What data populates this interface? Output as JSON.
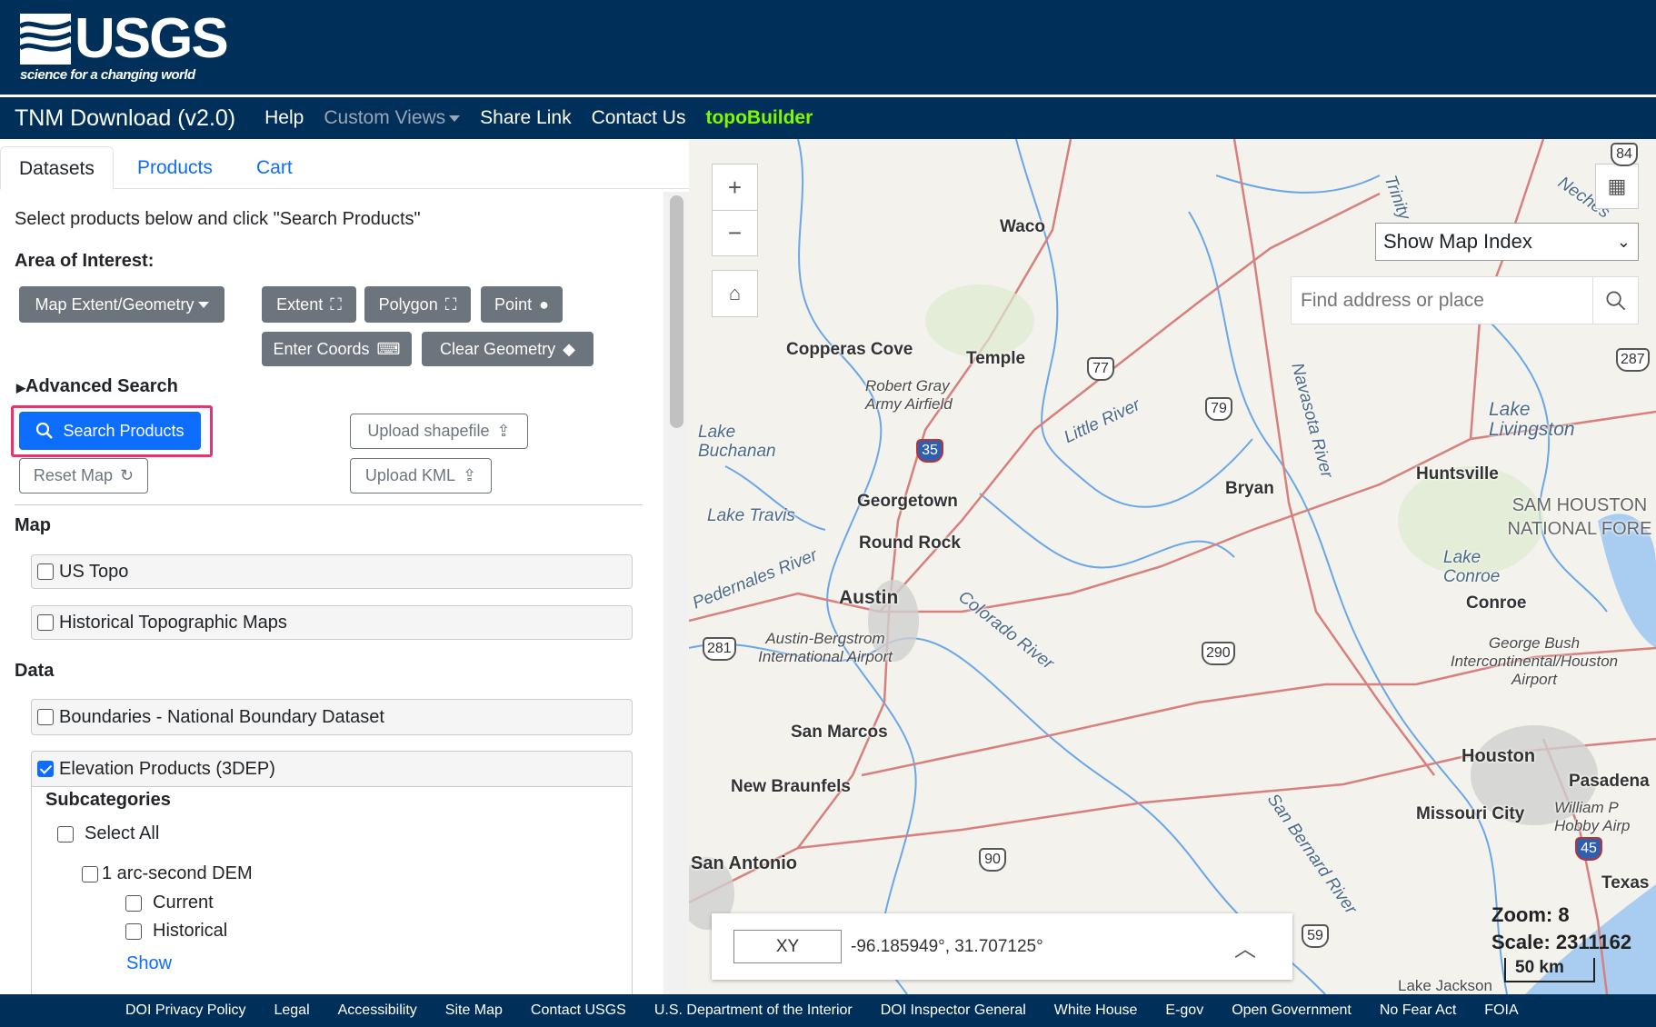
{
  "header": {
    "logo_text": "USGS",
    "logo_tagline": "science for a changing world"
  },
  "nav": {
    "title": "TNM Download (v2.0)",
    "items": [
      "Help",
      "Custom Views",
      "Share Link",
      "Contact Us",
      "topoBuilder"
    ]
  },
  "tabs": [
    "Datasets",
    "Products",
    "Cart"
  ],
  "panel": {
    "instructions": "Select products below and click \"Search Products\"",
    "aoi_heading": "Area of Interest:",
    "aoi_buttons": {
      "map_extent": "Map Extent/Geometry",
      "extent": "Extent",
      "polygon": "Polygon",
      "point": "Point",
      "enter_coords": "Enter Coords",
      "clear_geometry": "Clear Geometry"
    },
    "advanced_search": "Advanced Search",
    "search_products": "Search Products",
    "upload_shapefile": "Upload shapefile",
    "reset_map": "Reset Map",
    "upload_kml": "Upload KML",
    "map_heading": "Map",
    "map_items": [
      {
        "label": "US Topo",
        "checked": false
      },
      {
        "label": "Historical Topographic Maps",
        "checked": false
      }
    ],
    "data_heading": "Data",
    "data_items": [
      {
        "label": "Boundaries - National Boundary Dataset",
        "checked": false
      },
      {
        "label": "Elevation Products (3DEP)",
        "checked": true
      }
    ],
    "subcategories": "Subcategories",
    "select_all": "Select All",
    "dem_1arc": "1 arc-second DEM",
    "current": "Current",
    "historical": "Historical",
    "show": "Show"
  },
  "map": {
    "index_select": "Show Map Index",
    "search_placeholder": "Find address or place",
    "coord_mode": "XY",
    "coords": "-96.185949°, 31.707125°",
    "zoom": "Zoom: 8",
    "scale": "Scale: 2311162",
    "scalebar": "50 km",
    "labels": [
      "Waco",
      "Copperas Cove",
      "Temple",
      "Robert Gray Army Airfield",
      "Lake Buchanan",
      "Little River",
      "Navasota River",
      "Lake Livingston",
      "Huntsville",
      "Bryan",
      "Georgetown",
      "Lake Travis",
      "Round Rock",
      "Pedernales River",
      "Austin",
      "Colorado River",
      "Austin-Bergstrom International Airport",
      "San Marcos",
      "New Braunfels",
      "San Antonio",
      "SAM HOUSTON NATIONAL FORE",
      "Lake Conroe",
      "Conroe",
      "George Bush Intercontinental/Houston Airport",
      "Houston",
      "Pasadena",
      "Missouri City",
      "William P Hobby Airp",
      "San Bernard River",
      "Texas",
      "Lake Jackson",
      "Trinity",
      "Neches"
    ],
    "shields": [
      "35",
      "77",
      "79",
      "287",
      "290",
      "281",
      "90",
      "59",
      "45",
      "84"
    ]
  },
  "footer": [
    "DOI Privacy Policy",
    "Legal",
    "Accessibility",
    "Site Map",
    "Contact USGS",
    "U.S. Department of the Interior",
    "DOI Inspector General",
    "White House",
    "E-gov",
    "Open Government",
    "No Fear Act",
    "FOIA"
  ],
  "colors": {
    "header_bg": "#00305a",
    "primary": "#0d6efd",
    "highlight": "#e8336d",
    "topobuilder": "#7cfc00"
  }
}
